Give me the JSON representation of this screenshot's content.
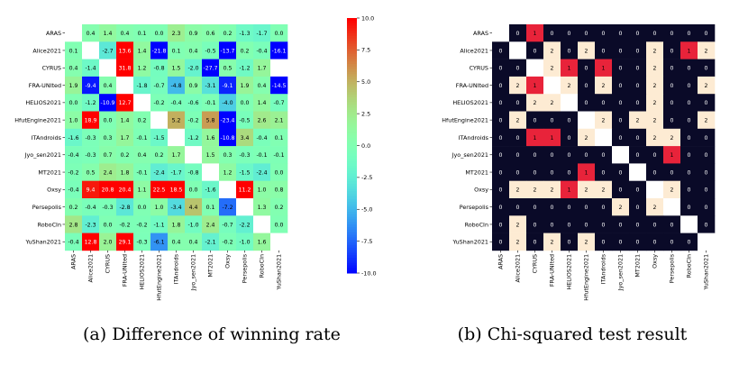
{
  "chart_data": [
    {
      "type": "heatmap",
      "caption": "(a) Difference of winning rate",
      "rows": [
        "ARAS",
        "Alice2021",
        "CYRUS",
        "FRA-UNIted",
        "HELIOS2021",
        "HfutEngine2021",
        "ITAndroids",
        "Jyo_sen2021",
        "MT2021",
        "Oxsy",
        "Persepolis",
        "RoboCIn",
        "YuShan2021"
      ],
      "cols": [
        "ARAS",
        "Alice2021",
        "CYRUS",
        "FRA-UNIted",
        "HELIOS2021",
        "HfutEngine2021",
        "ITAndroids",
        "Jyo_sen2021",
        "MT2021",
        "Oxsy",
        "Persepolis",
        "RoboCIn",
        "YuShan2021"
      ],
      "values": [
        [
          null,
          0.4,
          1.4,
          0.4,
          0.1,
          0.0,
          2.3,
          0.9,
          0.6,
          0.2,
          -1.3,
          -1.7,
          0.0
        ],
        [
          0.1,
          null,
          -2.7,
          13.6,
          1.4,
          -21.8,
          0.1,
          0.4,
          -0.5,
          -13.7,
          0.2,
          -0.4,
          -16.1
        ],
        [
          0.4,
          -1.4,
          null,
          31.8,
          1.2,
          -0.8,
          1.5,
          -2.0,
          -27.7,
          0.5,
          -1.2,
          1.7,
          null
        ],
        [
          1.9,
          -9.4,
          0.4,
          null,
          -1.8,
          -0.7,
          -4.8,
          0.9,
          -3.1,
          -9.1,
          1.9,
          0.4,
          -14.5
        ],
        [
          0.0,
          -1.2,
          -10.9,
          12.7,
          null,
          -0.2,
          -0.4,
          -0.6,
          -0.1,
          -4.0,
          0.0,
          1.4,
          -0.7
        ],
        [
          1.0,
          18.9,
          0.0,
          1.4,
          0.2,
          null,
          5.2,
          -0.2,
          5.8,
          -23.4,
          -0.5,
          2.6,
          2.1
        ],
        [
          -1.6,
          -0.3,
          0.3,
          1.7,
          -0.1,
          -1.5,
          null,
          -1.2,
          1.6,
          -10.8,
          3.4,
          -0.4,
          0.1
        ],
        [
          -0.4,
          -0.3,
          0.7,
          0.2,
          0.4,
          0.2,
          1.7,
          null,
          1.5,
          0.3,
          -0.3,
          -0.1,
          -0.1
        ],
        [
          -0.2,
          0.5,
          2.4,
          1.8,
          -0.1,
          -2.4,
          -1.7,
          -0.8,
          null,
          1.2,
          -1.5,
          -2.4,
          0.0
        ],
        [
          -0.4,
          9.4,
          20.8,
          20.4,
          1.1,
          22.5,
          18.5,
          0.0,
          -1.6,
          null,
          11.2,
          1.0,
          0.8
        ],
        [
          0.2,
          -0.4,
          -0.3,
          -2.8,
          0.0,
          1.0,
          -3.4,
          4.4,
          0.1,
          -7.2,
          null,
          1.3,
          0.2
        ],
        [
          2.8,
          -2.3,
          0.0,
          -0.2,
          -0.2,
          -1.1,
          1.8,
          -1.0,
          2.4,
          -0.7,
          -2.2,
          null,
          0.0
        ],
        [
          -0.4,
          12.8,
          2.0,
          29.1,
          -0.3,
          -6.1,
          0.4,
          0.4,
          -2.1,
          -0.2,
          -1.0,
          1.6,
          null
        ]
      ],
      "colorbar": {
        "min": -10.0,
        "max": 10.0,
        "ticks": [
          "10.0",
          "7.5",
          "5.0",
          "2.5",
          "0.0",
          "-2.5",
          "-5.0",
          "-7.5",
          "-10.0"
        ],
        "colormap": "rainbow"
      }
    },
    {
      "type": "heatmap",
      "caption": "(b) Chi-squared test result",
      "rows": [
        "ARAS",
        "Alice2021",
        "CYRUS",
        "FRA-UNIted",
        "HELIOS2021",
        "HfutEngine2021",
        "ITAndroids",
        "Jyo_sen2021",
        "MT2021",
        "Oxsy",
        "Persepolis",
        "RoboCIn",
        "YuShan2021"
      ],
      "cols": [
        "ARAS",
        "Alice2021",
        "CYRUS",
        "FRA-UNIted",
        "HELIOS2021",
        "HfutEngine2021",
        "ITAndroids",
        "Jyo_sen2021",
        "MT2021",
        "Oxsy",
        "Persepolis",
        "RoboCIn",
        "YuShan2021"
      ],
      "values": [
        [
          null,
          0,
          1,
          0,
          0,
          0,
          0,
          0,
          0,
          0,
          0,
          0,
          0
        ],
        [
          0,
          null,
          0,
          2,
          0,
          2,
          0,
          0,
          0,
          2,
          0,
          1,
          2
        ],
        [
          0,
          0,
          null,
          2,
          1,
          0,
          1,
          0,
          0,
          2,
          0,
          0,
          0
        ],
        [
          0,
          2,
          1,
          null,
          2,
          0,
          2,
          0,
          0,
          2,
          0,
          0,
          2
        ],
        [
          0,
          0,
          2,
          2,
          null,
          0,
          0,
          0,
          0,
          2,
          0,
          0,
          0
        ],
        [
          0,
          2,
          0,
          0,
          0,
          null,
          2,
          0,
          2,
          2,
          0,
          0,
          2
        ],
        [
          0,
          0,
          1,
          1,
          0,
          2,
          null,
          0,
          0,
          2,
          2,
          0,
          0
        ],
        [
          0,
          0,
          0,
          0,
          0,
          0,
          0,
          null,
          0,
          0,
          1,
          0,
          0
        ],
        [
          0,
          0,
          0,
          0,
          0,
          1,
          0,
          0,
          null,
          0,
          0,
          0,
          0
        ],
        [
          0,
          2,
          2,
          2,
          1,
          2,
          2,
          0,
          0,
          null,
          2,
          0,
          0
        ],
        [
          0,
          0,
          0,
          0,
          0,
          0,
          0,
          2,
          0,
          2,
          null,
          0,
          0
        ],
        [
          0,
          2,
          0,
          0,
          0,
          0,
          0,
          0,
          0,
          0,
          0,
          null,
          0
        ],
        [
          0,
          2,
          0,
          2,
          0,
          2,
          0,
          0,
          0,
          0,
          0,
          0,
          null
        ]
      ],
      "colors": {
        "0": "#0a0a28",
        "1": "#e8233a",
        "2": "#fdebd3",
        "diagonal": "#ffffff"
      }
    }
  ]
}
